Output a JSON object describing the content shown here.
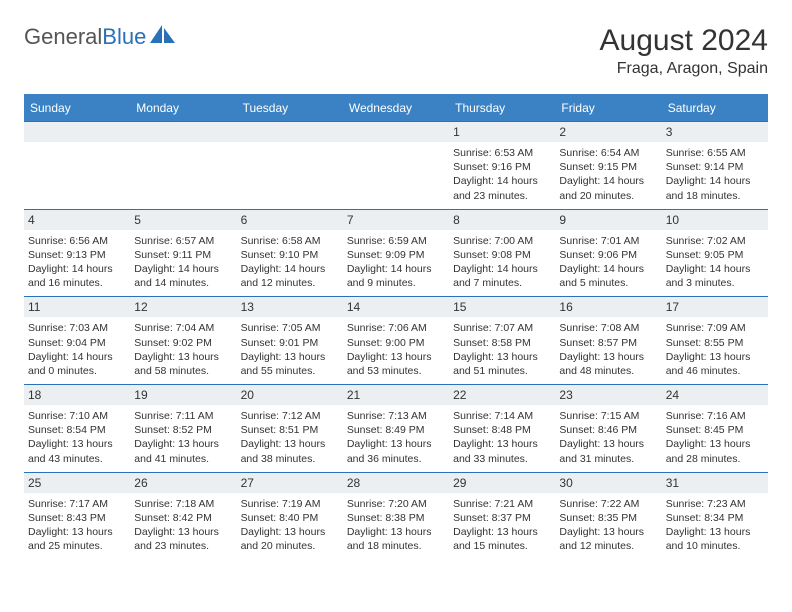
{
  "logo": {
    "text1": "General",
    "text2": "Blue"
  },
  "title": "August 2024",
  "location": "Fraga, Aragon, Spain",
  "colors": {
    "header_bg": "#3b82c4",
    "header_text": "#ffffff",
    "band_bg": "#eceff1",
    "border": "#2a71b8",
    "text": "#333333",
    "logo_gray": "#555555",
    "logo_blue": "#2a71b8"
  },
  "days_of_week": [
    "Sunday",
    "Monday",
    "Tuesday",
    "Wednesday",
    "Thursday",
    "Friday",
    "Saturday"
  ],
  "weeks": [
    [
      null,
      null,
      null,
      null,
      {
        "n": "1",
        "sunrise": "6:53 AM",
        "sunset": "9:16 PM",
        "daylight": "14 hours and 23 minutes."
      },
      {
        "n": "2",
        "sunrise": "6:54 AM",
        "sunset": "9:15 PM",
        "daylight": "14 hours and 20 minutes."
      },
      {
        "n": "3",
        "sunrise": "6:55 AM",
        "sunset": "9:14 PM",
        "daylight": "14 hours and 18 minutes."
      }
    ],
    [
      {
        "n": "4",
        "sunrise": "6:56 AM",
        "sunset": "9:13 PM",
        "daylight": "14 hours and 16 minutes."
      },
      {
        "n": "5",
        "sunrise": "6:57 AM",
        "sunset": "9:11 PM",
        "daylight": "14 hours and 14 minutes."
      },
      {
        "n": "6",
        "sunrise": "6:58 AM",
        "sunset": "9:10 PM",
        "daylight": "14 hours and 12 minutes."
      },
      {
        "n": "7",
        "sunrise": "6:59 AM",
        "sunset": "9:09 PM",
        "daylight": "14 hours and 9 minutes."
      },
      {
        "n": "8",
        "sunrise": "7:00 AM",
        "sunset": "9:08 PM",
        "daylight": "14 hours and 7 minutes."
      },
      {
        "n": "9",
        "sunrise": "7:01 AM",
        "sunset": "9:06 PM",
        "daylight": "14 hours and 5 minutes."
      },
      {
        "n": "10",
        "sunrise": "7:02 AM",
        "sunset": "9:05 PM",
        "daylight": "14 hours and 3 minutes."
      }
    ],
    [
      {
        "n": "11",
        "sunrise": "7:03 AM",
        "sunset": "9:04 PM",
        "daylight": "14 hours and 0 minutes."
      },
      {
        "n": "12",
        "sunrise": "7:04 AM",
        "sunset": "9:02 PM",
        "daylight": "13 hours and 58 minutes."
      },
      {
        "n": "13",
        "sunrise": "7:05 AM",
        "sunset": "9:01 PM",
        "daylight": "13 hours and 55 minutes."
      },
      {
        "n": "14",
        "sunrise": "7:06 AM",
        "sunset": "9:00 PM",
        "daylight": "13 hours and 53 minutes."
      },
      {
        "n": "15",
        "sunrise": "7:07 AM",
        "sunset": "8:58 PM",
        "daylight": "13 hours and 51 minutes."
      },
      {
        "n": "16",
        "sunrise": "7:08 AM",
        "sunset": "8:57 PM",
        "daylight": "13 hours and 48 minutes."
      },
      {
        "n": "17",
        "sunrise": "7:09 AM",
        "sunset": "8:55 PM",
        "daylight": "13 hours and 46 minutes."
      }
    ],
    [
      {
        "n": "18",
        "sunrise": "7:10 AM",
        "sunset": "8:54 PM",
        "daylight": "13 hours and 43 minutes."
      },
      {
        "n": "19",
        "sunrise": "7:11 AM",
        "sunset": "8:52 PM",
        "daylight": "13 hours and 41 minutes."
      },
      {
        "n": "20",
        "sunrise": "7:12 AM",
        "sunset": "8:51 PM",
        "daylight": "13 hours and 38 minutes."
      },
      {
        "n": "21",
        "sunrise": "7:13 AM",
        "sunset": "8:49 PM",
        "daylight": "13 hours and 36 minutes."
      },
      {
        "n": "22",
        "sunrise": "7:14 AM",
        "sunset": "8:48 PM",
        "daylight": "13 hours and 33 minutes."
      },
      {
        "n": "23",
        "sunrise": "7:15 AM",
        "sunset": "8:46 PM",
        "daylight": "13 hours and 31 minutes."
      },
      {
        "n": "24",
        "sunrise": "7:16 AM",
        "sunset": "8:45 PM",
        "daylight": "13 hours and 28 minutes."
      }
    ],
    [
      {
        "n": "25",
        "sunrise": "7:17 AM",
        "sunset": "8:43 PM",
        "daylight": "13 hours and 25 minutes."
      },
      {
        "n": "26",
        "sunrise": "7:18 AM",
        "sunset": "8:42 PM",
        "daylight": "13 hours and 23 minutes."
      },
      {
        "n": "27",
        "sunrise": "7:19 AM",
        "sunset": "8:40 PM",
        "daylight": "13 hours and 20 minutes."
      },
      {
        "n": "28",
        "sunrise": "7:20 AM",
        "sunset": "8:38 PM",
        "daylight": "13 hours and 18 minutes."
      },
      {
        "n": "29",
        "sunrise": "7:21 AM",
        "sunset": "8:37 PM",
        "daylight": "13 hours and 15 minutes."
      },
      {
        "n": "30",
        "sunrise": "7:22 AM",
        "sunset": "8:35 PM",
        "daylight": "13 hours and 12 minutes."
      },
      {
        "n": "31",
        "sunrise": "7:23 AM",
        "sunset": "8:34 PM",
        "daylight": "13 hours and 10 minutes."
      }
    ]
  ],
  "labels": {
    "sunrise": "Sunrise: ",
    "sunset": "Sunset: ",
    "daylight": "Daylight: "
  }
}
